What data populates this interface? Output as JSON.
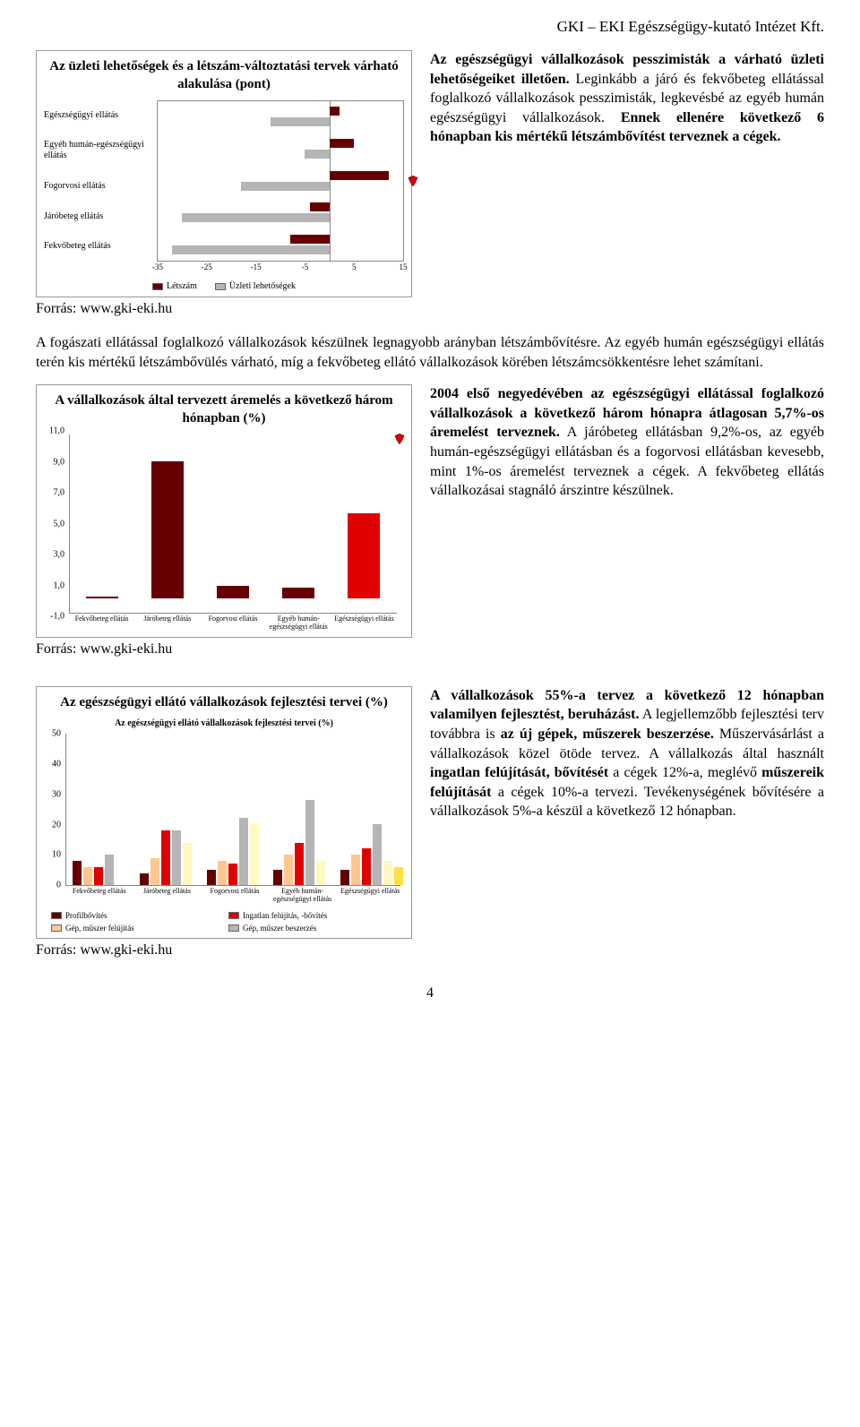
{
  "header": "GKI – EKI Egészségügy-kutató Intézet Kft.",
  "page_number": "4",
  "source_label": "Forrás: www.gki-eki.hu",
  "colors": {
    "dark_red": "#660000",
    "red": "#e10000",
    "grey": "#b5b5b5",
    "light_yellow": "#fff8c0",
    "yellow": "#ffe040",
    "peach": "#ffc78f",
    "border": "#888888"
  },
  "chart1": {
    "title": "Az üzleti lehetőségek és a létszám-változtatási tervek várható alakulása (pont)",
    "categories": [
      "Egészségügyi ellátás",
      "Egyéb humán-egészségügyi ellátás",
      "Fogorvosi ellátás",
      "Járóbeteg ellátás",
      "Fekvőbeteg ellátás"
    ],
    "x_ticks": [
      -35,
      -25,
      -15,
      -5,
      5,
      15
    ],
    "xlim": [
      -35,
      15
    ],
    "series": [
      {
        "name": "Létszám",
        "color": "#660000",
        "values": [
          2,
          5,
          12,
          -4,
          -8
        ]
      },
      {
        "name": "Üzleti lehetőségek",
        "color": "#b5b5b5",
        "values": [
          -12,
          -5,
          -18,
          -30,
          -32
        ]
      }
    ],
    "legend": [
      "Létszám",
      "Üzleti lehetőségek"
    ]
  },
  "para1_heading_words": {
    "p1a": "Az    egészségügyi    vállalkozások pesszimisták   a   várható   üzleti lehetőségeiket illetően.",
    "p1b": " Leginkább a járó és  fekvőbeteg  ellátással  foglalkozó vállalkozások pesszimisták, legkevésbé az egyéb humán egészségügyi vállalkozások. ",
    "p1c": "Ennek ellenére következő 6 hónapban kis mértékű létszámbővítést terveznek a cégek."
  },
  "para2": "A  fogászati  ellátással  foglalkozó  vállalkozások  készülnek  legnagyobb  arányban létszámbővítésre.  Az  egyéb  humán  egészségügyi  ellátás  terén  kis  mértékű  létszámbővülés várható, míg a fekvőbeteg ellátó vállalkozások körében létszámcsökkentésre lehet számítani.",
  "chart2": {
    "title": "A vállalkozások által tervezett áremelés a következő három hónapban (%)",
    "y_ticks": [
      "11,0",
      "9,0",
      "7,0",
      "5,0",
      "3,0",
      "1,0",
      "-1,0"
    ],
    "ylim": [
      -1,
      11
    ],
    "categories": [
      "Fekvőbeteg ellátás",
      "Járóbeteg ellátás",
      "Fogorvosi ellátás",
      "Egyéb humán-egészségügyi ellátás",
      "Egészségügyi ellátás"
    ],
    "values": [
      0,
      9.2,
      0.8,
      0.7,
      5.7
    ],
    "colors": [
      "#660000",
      "#660000",
      "#660000",
      "#660000",
      "#e10000"
    ]
  },
  "para3": {
    "a": "2004 első negyedévében az egészségügyi ellátással  foglalkozó  vállalkozások  a következő  három  hónapra  átlagosan 5,7%-os   áremelést   terveznek.",
    "b": "   A járóbeteg  ellátásban  9,2%-os,  az  egyéb humán-egészségügyi  ellátásban  és  a fogorvosi ellátásban kevesebb, mint 1%-os  áremelést  terveznek  a  cégek.   A fekvőbeteg ellátás vállalkozásai stagnáló árszintre készülnek."
  },
  "chart3": {
    "title": "Az egészségügyi ellátó vállalkozások fejlesztési tervei (%)",
    "subtitle": "Az egészségügyi ellátó vállalkozások fejlesztési tervei (%)",
    "y_ticks": [
      50,
      40,
      30,
      20,
      10,
      0
    ],
    "ylim": [
      0,
      50
    ],
    "categories": [
      "Fekvőbeteg ellátás",
      "Járóbeteg ellátás",
      "Fogorvosi ellátás",
      "Egyéb humán-egészségügyi ellátás",
      "Egészségügyi ellátás"
    ],
    "series": [
      {
        "name": "Profilbővítés",
        "color": "#660000",
        "values": [
          8,
          4,
          5,
          5,
          5
        ]
      },
      {
        "name": "Gép, műszer felújítás",
        "color": "#ffc78f",
        "values": [
          6,
          9,
          8,
          10,
          10
        ]
      },
      {
        "name": "Ingatlan felújítás, -bővítés",
        "color": "#e10000",
        "values": [
          6,
          18,
          7,
          14,
          12
        ]
      },
      {
        "name": "Gép, műszer beszerzés",
        "color": "#b5b5b5",
        "values": [
          10,
          18,
          22,
          28,
          20
        ]
      },
      {
        "name": "_extra1",
        "color": "#fff8c0",
        "values": [
          0,
          14,
          20,
          8,
          8
        ]
      },
      {
        "name": "_extra2",
        "color": "#ffe040",
        "values": [
          0,
          0,
          0,
          0,
          6
        ]
      }
    ],
    "legend": [
      {
        "label": "Profilbővítés",
        "color": "#660000"
      },
      {
        "label": "Ingatlan felújítás, -bővítés",
        "color": "#e10000"
      },
      {
        "label": "Gép, műszer felújítás",
        "color": "#ffc78f"
      },
      {
        "label": "Gép, műszer beszerzés",
        "color": "#b5b5b5"
      }
    ]
  },
  "para4": {
    "a": "A   vállalkozások   55%-a   tervez   a következő  12  hónapban  valamilyen fejlesztést, beruházást.",
    "b": " A legjellemzőbb fejlesztési terv továbbra is ",
    "c": "az új gépek, műszerek beszerzése.",
    "d": " Műszervásárlást a vállalkozások  közel  ötöde  tervez.   A vállalkozás  által  használt  ",
    "e": "ingatlan felújítását,  bővítését",
    "f": "  a  cégek  12%-a, meglévő  ",
    "g": "műszereik felújítását",
    "h": "  a  cégek 10%-a   tervezi.    Tevékenységének bővítésére a vállalkozások 5%-a készül a következő 12 hónapban."
  }
}
